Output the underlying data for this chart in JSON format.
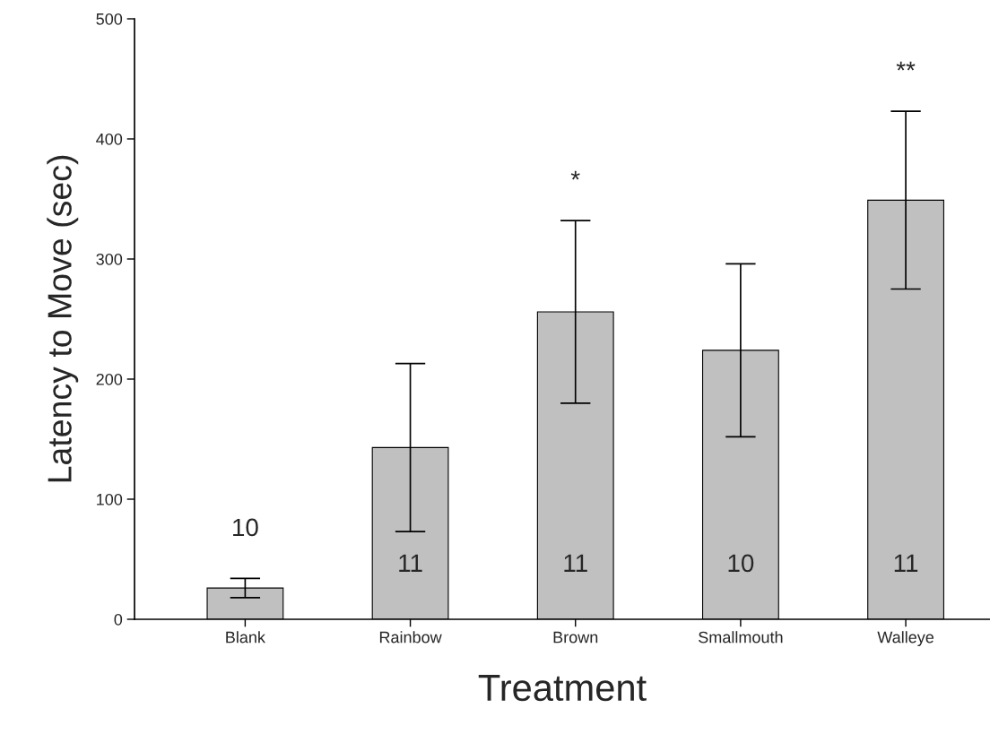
{
  "chart_data": {
    "type": "bar",
    "xlabel": "Treatment",
    "ylabel": "Latency to Move (sec)",
    "categories": [
      "Blank",
      "Rainbow",
      "Brown",
      "Smallmouth",
      "Walleye"
    ],
    "values": [
      26,
      143,
      256,
      224,
      349
    ],
    "errors": [
      8,
      70,
      76,
      72,
      74
    ],
    "color": "#c0c0c0",
    "ylim": [
      0,
      500
    ],
    "yticks": [
      0,
      100,
      200,
      300,
      400,
      500
    ],
    "grid": false,
    "legend": false,
    "annotations": [
      "10",
      "11",
      "11",
      "10",
      "11",
      "*",
      "**"
    ]
  }
}
